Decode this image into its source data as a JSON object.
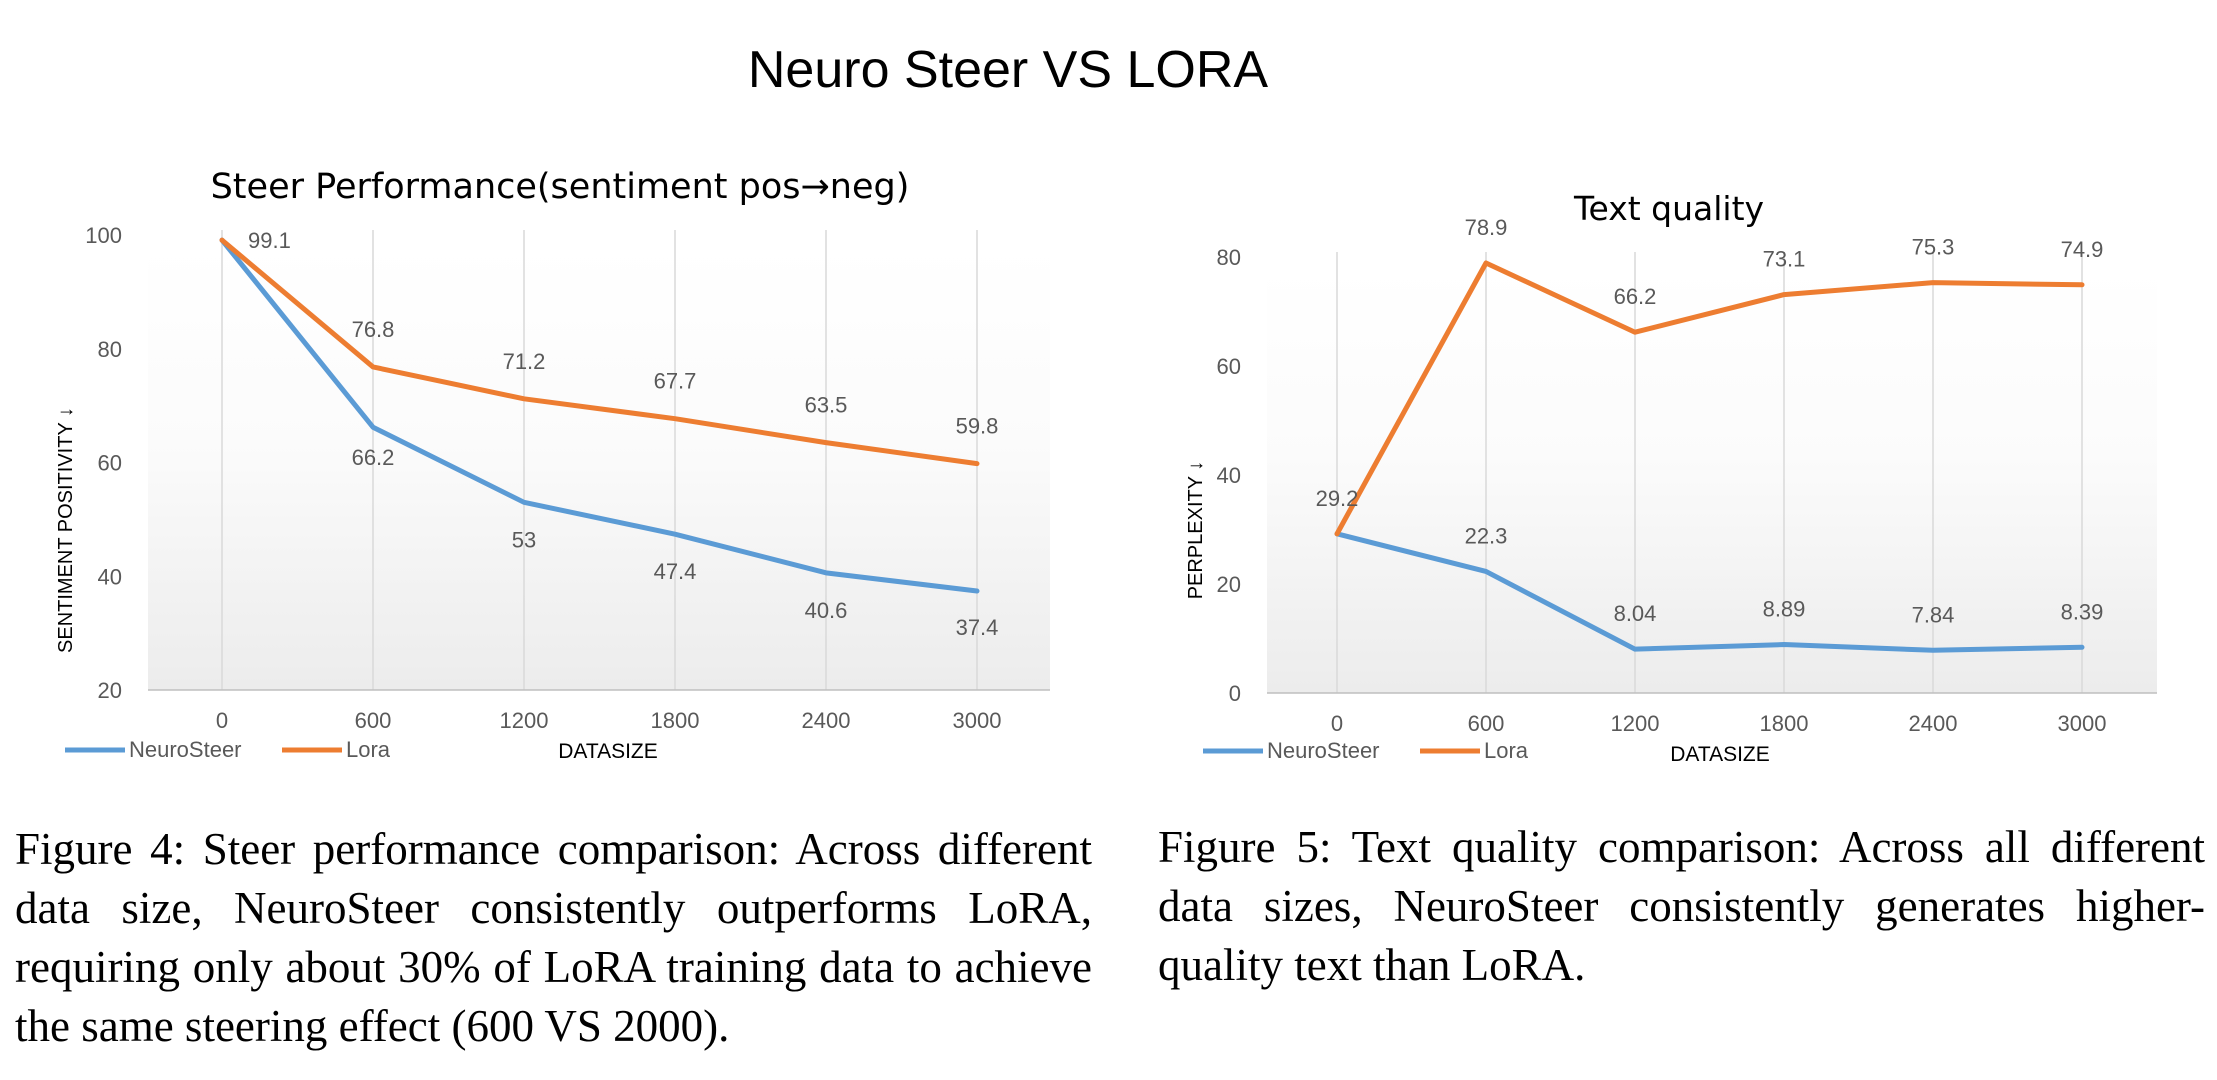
{
  "main_title": "Neuro Steer VS LORA",
  "colors": {
    "neurosteer": "#5B9BD5",
    "lora": "#ED7D31",
    "grid": "#d9d9d9",
    "tick_text": "#595959"
  },
  "chart_data": [
    {
      "type": "line",
      "title": "Steer Performance(sentiment pos→neg)",
      "xlabel": "DATASIZE",
      "ylabel": "SENTIMENT POSITIVITY ↓",
      "x": [
        "0",
        "600",
        "1200",
        "1800",
        "2400",
        "3000"
      ],
      "ylim": [
        20,
        100
      ],
      "yticks": [
        20,
        40,
        60,
        80,
        100
      ],
      "series": [
        {
          "name": "NeuroSteer",
          "color": "#5B9BD5",
          "values": [
            99.1,
            66.2,
            53,
            47.4,
            40.6,
            37.4
          ],
          "labels": [
            "",
            "66.2",
            "53",
            "47.4",
            "40.6",
            "37.4"
          ]
        },
        {
          "name": "Lora",
          "color": "#ED7D31",
          "values": [
            99.1,
            76.8,
            71.2,
            67.7,
            63.5,
            59.8
          ],
          "labels": [
            "99.1",
            "76.8",
            "71.2",
            "67.7",
            "63.5",
            "59.8"
          ]
        }
      ],
      "legend": "bottom-left"
    },
    {
      "type": "line",
      "title": "Text quality",
      "xlabel": "DATASIZE",
      "ylabel": "PERPLEXITY ↓",
      "x": [
        "0",
        "600",
        "1200",
        "1800",
        "2400",
        "3000"
      ],
      "ylim": [
        0,
        80
      ],
      "yticks": [
        0,
        20,
        40,
        60,
        80
      ],
      "series": [
        {
          "name": "NeuroSteer",
          "color": "#5B9BD5",
          "values": [
            29.2,
            22.3,
            8.04,
            8.89,
            7.84,
            8.39
          ],
          "labels": [
            "29.2",
            "22.3",
            "8.04",
            "8.89",
            "7.84",
            "8.39"
          ]
        },
        {
          "name": "Lora",
          "color": "#ED7D31",
          "values": [
            29.2,
            78.9,
            66.2,
            73.1,
            75.3,
            74.9
          ],
          "labels": [
            "",
            "78.9",
            "66.2",
            "73.1",
            "75.3",
            "74.9"
          ]
        }
      ],
      "legend": "bottom-left"
    }
  ],
  "captions": {
    "left": "Figure 4: Steer performance comparison: Across dif­ferent data size, NeuroSteer consistently outperforms LoRA, requiring only about 30% of LoRA training data to achieve the same steering effect (600 VS 2000).",
    "right": "Figure 5: Text quality comparison: Across all different data sizes, NeuroSteer consistently generates higher-quality text than LoRA."
  }
}
